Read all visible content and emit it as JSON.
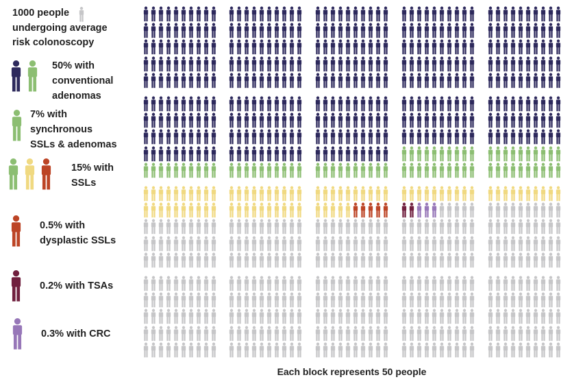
{
  "title_note": {
    "lines": [
      "1000 people",
      "undergoing average",
      "risk colonoscopy"
    ],
    "icons": [
      "gray"
    ]
  },
  "legend": [
    {
      "icons": [
        "navy",
        "green"
      ],
      "lines": [
        "50% with",
        "conventional",
        "adenomas"
      ]
    },
    {
      "icons": [
        "green"
      ],
      "lines": [
        "7% with",
        "synchronous",
        "SSLs & adenomas"
      ]
    },
    {
      "icons": [
        "green",
        "yellow",
        "red"
      ],
      "lines": [
        "15% with",
        "SSLs"
      ]
    },
    {
      "icons": [
        "red"
      ],
      "lines": [
        "0.5% with",
        "dysplastic SSLs"
      ]
    },
    {
      "icons": [
        "maroon"
      ],
      "lines": [
        "0.2% with TSAs"
      ]
    },
    {
      "icons": [
        "purple"
      ],
      "lines": [
        "0.3% with CRC"
      ]
    }
  ],
  "palette": {
    "navy": "#2d295c",
    "green": "#8cbe72",
    "yellow": "#f0d981",
    "red": "#bc4425",
    "maroon": "#701f3e",
    "purple": "#9777b8",
    "gray": "#c6c6c8",
    "text": "#1f1f1f"
  },
  "chart_data": {
    "type": "pictogram",
    "title": "1000 people undergoing average risk colonoscopy",
    "caption": "Each block represents 50 people",
    "total_people": 1000,
    "people_per_block": 50,
    "people_per_icon": 1,
    "blocks_layout": {
      "rows": 4,
      "cols": 5,
      "icons_per_block_rows": 5,
      "icons_per_block_cols": 10
    },
    "legend_note": "navy+green together = 50% with conventional adenomas; green+yellow+red together = 15% with SSLs",
    "categories": [
      {
        "key": "n",
        "color_name": "navy",
        "label": "conventional adenomas (navy portion of 50%)",
        "people": 430,
        "percent": 43
      },
      {
        "key": "g",
        "color_name": "green",
        "label": "synchronous SSLs & adenomas",
        "people": 70,
        "percent": 7
      },
      {
        "key": "y",
        "color_name": "yellow",
        "label": "SSLs (yellow portion of 15%)",
        "people": 75,
        "percent": 7.5
      },
      {
        "key": "r",
        "color_name": "red",
        "label": "dysplastic SSLs",
        "people": 5,
        "percent": 0.5
      },
      {
        "key": "t",
        "color_name": "maroon",
        "label": "TSAs",
        "people": 2,
        "percent": 0.2
      },
      {
        "key": "c",
        "color_name": "purple",
        "label": "CRC",
        "people": 3,
        "percent": 0.3
      },
      {
        "key": "x",
        "color_name": "gray",
        "label": "remainder",
        "people": 415,
        "percent": 41.5
      }
    ],
    "color_codes": {
      "n": "navy",
      "g": "green",
      "y": "yellow",
      "r": "red",
      "t": "maroon",
      "c": "purple",
      "x": "gray"
    },
    "blocks": [
      [
        "nnnnnnnnnn",
        "nnnnnnnnnn",
        "nnnnnnnnnn",
        "nnnnnnnnnn",
        "nnnnnnnnnn"
      ],
      [
        "nnnnnnnnnn",
        "nnnnnnnnnn",
        "nnnnnnnnnn",
        "nnnnnnnnnn",
        "nnnnnnnnnn"
      ],
      [
        "nnnnnnnnnn",
        "nnnnnnnnnn",
        "nnnnnnnnnn",
        "nnnnnnnnnn",
        "nnnnnnnnnn"
      ],
      [
        "nnnnnnnnnn",
        "nnnnnnnnnn",
        "nnnnnnnnnn",
        "nnnnnnnnnn",
        "nnnnnnnnnn"
      ],
      [
        "nnnnnnnnnn",
        "nnnnnnnnnn",
        "nnnnnnnnnn",
        "nnnnnnnnnn",
        "nnnnnnnnnn"
      ],
      [
        "nnnnnnnnnn",
        "nnnnnnnnnn",
        "nnnnnnnnnn",
        "nnnnnnnnnn",
        "gggggggggg"
      ],
      [
        "nnnnnnnnnn",
        "nnnnnnnnnn",
        "nnnnnnnnnn",
        "nnnnnnnnnn",
        "gggggggggg"
      ],
      [
        "nnnnnnnnnn",
        "nnnnnnnnnn",
        "nnnnnnnnnn",
        "nnnnnnnnnn",
        "gggggggggg"
      ],
      [
        "nnnnnnnnnn",
        "nnnnnnnnnn",
        "nnnnnnnnnn",
        "gggggggggg",
        "gggggggggg"
      ],
      [
        "nnnnnnnnnn",
        "nnnnnnnnnn",
        "nnnnnnnnnn",
        "gggggggggg",
        "gggggggggg"
      ],
      [
        "yyyyyyyyyy",
        "yyyyyyyyyy",
        "xxxxxxxxxx",
        "xxxxxxxxxx",
        "xxxxxxxxxx"
      ],
      [
        "yyyyyyyyyy",
        "yyyyyyyyyy",
        "xxxxxxxxxx",
        "xxxxxxxxxx",
        "xxxxxxxxxx"
      ],
      [
        "yyyyyyyyyy",
        "yyyyyrrrrr",
        "xxxxxxxxxx",
        "xxxxxxxxxx",
        "xxxxxxxxxx"
      ],
      [
        "yyyyyyyyyy",
        "ttcccxxxxx",
        "xxxxxxxxxx",
        "xxxxxxxxxx",
        "xxxxxxxxxx"
      ],
      [
        "yyyyyyyyyy",
        "xxxxxxxxxx",
        "xxxxxxxxxx",
        "xxxxxxxxxx",
        "xxxxxxxxxx"
      ],
      [
        "xxxxxxxxxx",
        "xxxxxxxxxx",
        "xxxxxxxxxx",
        "xxxxxxxxxx",
        "xxxxxxxxxx"
      ],
      [
        "xxxxxxxxxx",
        "xxxxxxxxxx",
        "xxxxxxxxxx",
        "xxxxxxxxxx",
        "xxxxxxxxxx"
      ],
      [
        "xxxxxxxxxx",
        "xxxxxxxxxx",
        "xxxxxxxxxx",
        "xxxxxxxxxx",
        "xxxxxxxxxx"
      ],
      [
        "xxxxxxxxxx",
        "xxxxxxxxxx",
        "xxxxxxxxxx",
        "xxxxxxxxxx",
        "xxxxxxxxxx"
      ],
      [
        "xxxxxxxxxx",
        "xxxxxxxxxx",
        "xxxxxxxxxx",
        "xxxxxxxxxx",
        "xxxxxxxxxx"
      ]
    ]
  }
}
